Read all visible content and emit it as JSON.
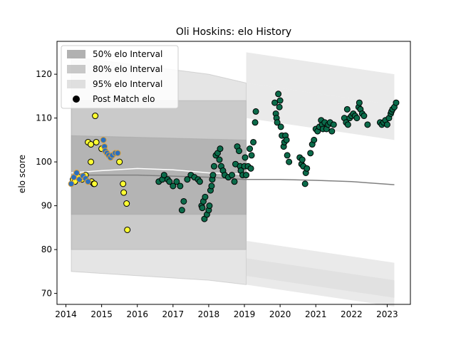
{
  "chart_data": {
    "type": "scatter",
    "title": "Oli Hoskins: elo History",
    "xlabel": "",
    "ylabel": "elo score",
    "xlim": [
      2013.75,
      2023.65
    ],
    "ylim": [
      67.5,
      127.5
    ],
    "xticks": [
      2014,
      2015,
      2016,
      2017,
      2018,
      2019,
      2020,
      2021,
      2022,
      2023
    ],
    "yticks": [
      70,
      80,
      90,
      100,
      110,
      120
    ],
    "xtick_labels": [
      "2014",
      "2015",
      "2016",
      "2017",
      "2018",
      "2019",
      "2020",
      "2021",
      "2022",
      "2023"
    ],
    "ytick_labels": [
      "70",
      "80",
      "90",
      "100",
      "110",
      "120"
    ],
    "grid": false,
    "legend_position": "top-left",
    "legend": [
      {
        "label": "50% elo Interval",
        "kind": "band",
        "color": "#9e9e9e",
        "opacity": 0.8
      },
      {
        "label": "80% elo Interval",
        "kind": "band",
        "color": "#9e9e9e",
        "opacity": 0.55
      },
      {
        "label": "95% elo Interval",
        "kind": "band",
        "color": "#c8c8c8",
        "opacity": 0.55
      },
      {
        "label": "Post Match elo",
        "kind": "marker",
        "color": "#000000"
      }
    ],
    "bands": [
      {
        "name": "95% elo Interval",
        "x": [
          2014.15,
          2018.0,
          2019.05
        ],
        "upper": [
          124,
          120,
          118
        ],
        "lower": [
          75,
          73,
          72
        ],
        "color": "#d0d0d0",
        "opacity": 0.55
      },
      {
        "name": "80% elo Interval",
        "x": [
          2014.15,
          2019.05
        ],
        "upper": [
          114,
          114
        ],
        "lower": [
          80,
          80
        ],
        "color": "#a8a8a8",
        "opacity": 0.45
      },
      {
        "name": "50% elo Interval",
        "x": [
          2014.15,
          2019.05
        ],
        "upper": [
          106,
          105
        ],
        "lower": [
          88,
          88
        ],
        "color": "#9a9a9a",
        "opacity": 0.45
      }
    ],
    "trend_lines": [
      {
        "color": "#ffffff",
        "x": [
          2014.15,
          2015,
          2016,
          2017,
          2018,
          2019
        ],
        "y": [
          97.5,
          98,
          98.5,
          98.2,
          97.5,
          97.2
        ]
      },
      {
        "color": "#808080",
        "x": [
          2014.15,
          2016,
          2018,
          2019,
          2020,
          2021,
          2022,
          2023.2
        ],
        "y": [
          97.0,
          97.0,
          96.5,
          96.0,
          96.0,
          95.8,
          95.5,
          94.8
        ]
      }
    ],
    "series": [
      {
        "color": "#ffff33",
        "edge": "#000000",
        "points": [
          [
            2014.2,
            96
          ],
          [
            2014.25,
            95.5
          ],
          [
            2014.3,
            97
          ],
          [
            2014.35,
            96.5
          ],
          [
            2014.45,
            96
          ],
          [
            2014.55,
            97
          ],
          [
            2014.62,
            104.5
          ],
          [
            2014.7,
            100
          ],
          [
            2014.7,
            104
          ],
          [
            2014.72,
            95.5
          ],
          [
            2014.78,
            95
          ],
          [
            2014.82,
            110.5
          ],
          [
            2014.85,
            104.5
          ],
          [
            2015.0,
            103
          ],
          [
            2015.5,
            100
          ],
          [
            2015.6,
            95
          ],
          [
            2015.62,
            93
          ],
          [
            2015.7,
            90.5
          ],
          [
            2015.72,
            84.5
          ],
          [
            2014.8,
            95
          ]
        ]
      },
      {
        "color": "#2a6fbf",
        "edge": "#e0a030",
        "points": [
          [
            2014.15,
            95
          ],
          [
            2014.22,
            96.5
          ],
          [
            2014.3,
            97.5
          ],
          [
            2014.38,
            96
          ],
          [
            2014.48,
            96.8
          ],
          [
            2014.55,
            96.2
          ],
          [
            2014.62,
            95.5
          ],
          [
            2015.05,
            105
          ],
          [
            2015.08,
            103.5
          ],
          [
            2015.1,
            102.5
          ],
          [
            2015.15,
            102
          ],
          [
            2015.2,
            101.5
          ],
          [
            2015.25,
            101
          ],
          [
            2015.3,
            101.5
          ],
          [
            2015.38,
            102
          ],
          [
            2015.45,
            102
          ]
        ]
      },
      {
        "color": "#0b6b4a",
        "edge": "#000000",
        "points": [
          [
            2016.6,
            95.5
          ],
          [
            2016.7,
            96
          ],
          [
            2016.75,
            97
          ],
          [
            2016.85,
            96
          ],
          [
            2016.9,
            95.5
          ],
          [
            2017.0,
            94.5
          ],
          [
            2017.1,
            95.5
          ],
          [
            2017.2,
            94.5
          ],
          [
            2017.25,
            89
          ],
          [
            2017.3,
            91
          ],
          [
            2017.4,
            96
          ],
          [
            2017.5,
            97
          ],
          [
            2017.6,
            96.5
          ],
          [
            2017.7,
            96
          ],
          [
            2017.75,
            95.5
          ],
          [
            2017.8,
            90
          ],
          [
            2017.82,
            89.5
          ],
          [
            2017.85,
            91
          ],
          [
            2017.88,
            87
          ],
          [
            2017.9,
            92
          ],
          [
            2017.95,
            88
          ],
          [
            2018.0,
            89
          ],
          [
            2018.02,
            90
          ],
          [
            2018.05,
            93.5
          ],
          [
            2018.08,
            94.5
          ],
          [
            2018.1,
            96
          ],
          [
            2018.12,
            97
          ],
          [
            2018.15,
            99
          ],
          [
            2018.2,
            101.5
          ],
          [
            2018.25,
            102
          ],
          [
            2018.3,
            100.5
          ],
          [
            2018.32,
            103
          ],
          [
            2018.35,
            99
          ],
          [
            2018.4,
            98
          ],
          [
            2018.45,
            97
          ],
          [
            2018.55,
            96.5
          ],
          [
            2018.65,
            97
          ],
          [
            2018.72,
            95.5
          ],
          [
            2018.75,
            99.5
          ],
          [
            2018.8,
            103.5
          ],
          [
            2018.85,
            102.5
          ],
          [
            2018.88,
            99
          ],
          [
            2018.9,
            98
          ],
          [
            2018.95,
            97
          ],
          [
            2019.0,
            99
          ],
          [
            2019.02,
            101
          ],
          [
            2019.05,
            97
          ],
          [
            2019.1,
            99
          ],
          [
            2019.15,
            103
          ],
          [
            2019.18,
            98.5
          ],
          [
            2019.2,
            101.5
          ],
          [
            2019.25,
            104.5
          ],
          [
            2019.3,
            109
          ],
          [
            2019.32,
            111.5
          ],
          [
            2019.85,
            113.5
          ],
          [
            2019.88,
            111
          ],
          [
            2019.9,
            110
          ],
          [
            2019.92,
            109
          ],
          [
            2019.95,
            115.5
          ],
          [
            2019.98,
            112.5
          ],
          [
            2020.0,
            114
          ],
          [
            2020.02,
            108
          ],
          [
            2020.05,
            106
          ],
          [
            2020.1,
            103.5
          ],
          [
            2020.12,
            104.5
          ],
          [
            2020.15,
            106
          ],
          [
            2020.18,
            105
          ],
          [
            2020.2,
            101.5
          ],
          [
            2020.25,
            100
          ],
          [
            2020.55,
            101
          ],
          [
            2020.6,
            99.5
          ],
          [
            2020.62,
            100.5
          ],
          [
            2020.65,
            99
          ],
          [
            2020.7,
            95
          ],
          [
            2020.72,
            97.5
          ],
          [
            2020.75,
            98.5
          ],
          [
            2020.85,
            102
          ],
          [
            2020.9,
            104
          ],
          [
            2020.95,
            105
          ],
          [
            2021.0,
            107.5
          ],
          [
            2021.05,
            107
          ],
          [
            2021.1,
            108
          ],
          [
            2021.15,
            109.5
          ],
          [
            2021.18,
            108.5
          ],
          [
            2021.2,
            107.5
          ],
          [
            2021.25,
            109
          ],
          [
            2021.3,
            107.5
          ],
          [
            2021.35,
            108.5
          ],
          [
            2021.4,
            109
          ],
          [
            2021.45,
            107
          ],
          [
            2021.5,
            108.5
          ],
          [
            2021.8,
            110
          ],
          [
            2021.85,
            109
          ],
          [
            2021.88,
            112
          ],
          [
            2021.9,
            108.5
          ],
          [
            2021.95,
            110
          ],
          [
            2022.0,
            110.5
          ],
          [
            2022.05,
            111
          ],
          [
            2022.1,
            110.5
          ],
          [
            2022.15,
            110
          ],
          [
            2022.2,
            112.5
          ],
          [
            2022.22,
            113.5
          ],
          [
            2022.25,
            112
          ],
          [
            2022.3,
            111
          ],
          [
            2022.35,
            110.5
          ],
          [
            2022.45,
            108.5
          ],
          [
            2022.8,
            109
          ],
          [
            2022.85,
            108.5
          ],
          [
            2022.9,
            109
          ],
          [
            2022.95,
            109.5
          ],
          [
            2023.0,
            108.5
          ],
          [
            2023.05,
            110
          ],
          [
            2023.1,
            111
          ],
          [
            2023.12,
            111.5
          ],
          [
            2023.15,
            112
          ],
          [
            2023.2,
            112.5
          ],
          [
            2023.25,
            113.5
          ]
        ]
      }
    ]
  }
}
